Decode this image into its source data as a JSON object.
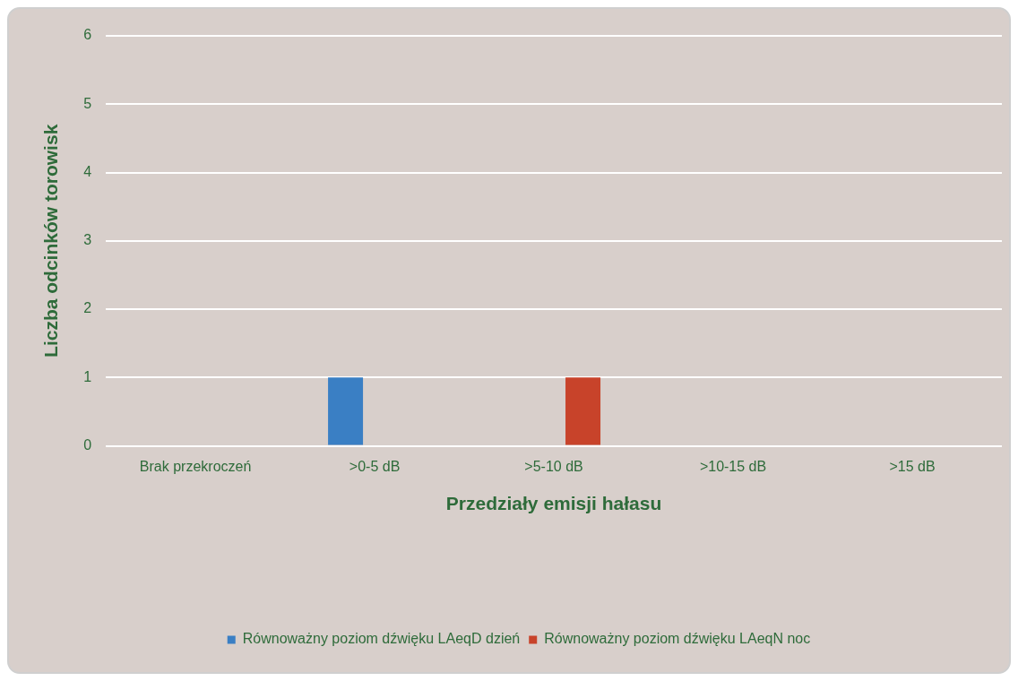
{
  "chart_data": {
    "type": "bar",
    "xlabel": "Przedziały emisji hałasu",
    "ylabel": "Liczba odcinków torowisk",
    "categories": [
      "Brak przekroczeń",
      ">0-5 dB",
      ">5-10 dB",
      ">10-15 dB",
      ">15 dB"
    ],
    "series": [
      {
        "name": "Równoważny poziom dźwięku LAeqD dzień",
        "color": "#3a7fc4",
        "values": [
          0,
          1,
          0,
          0,
          0
        ]
      },
      {
        "name": "Równoważny poziom dźwięku LAeqN noc",
        "color": "#c8432a",
        "values": [
          0,
          0,
          1,
          0,
          0
        ]
      }
    ],
    "ylim": [
      0,
      6
    ],
    "yticks": [
      0,
      1,
      2,
      3,
      4,
      5,
      6
    ],
    "grid": "y",
    "legend": "bottom"
  }
}
